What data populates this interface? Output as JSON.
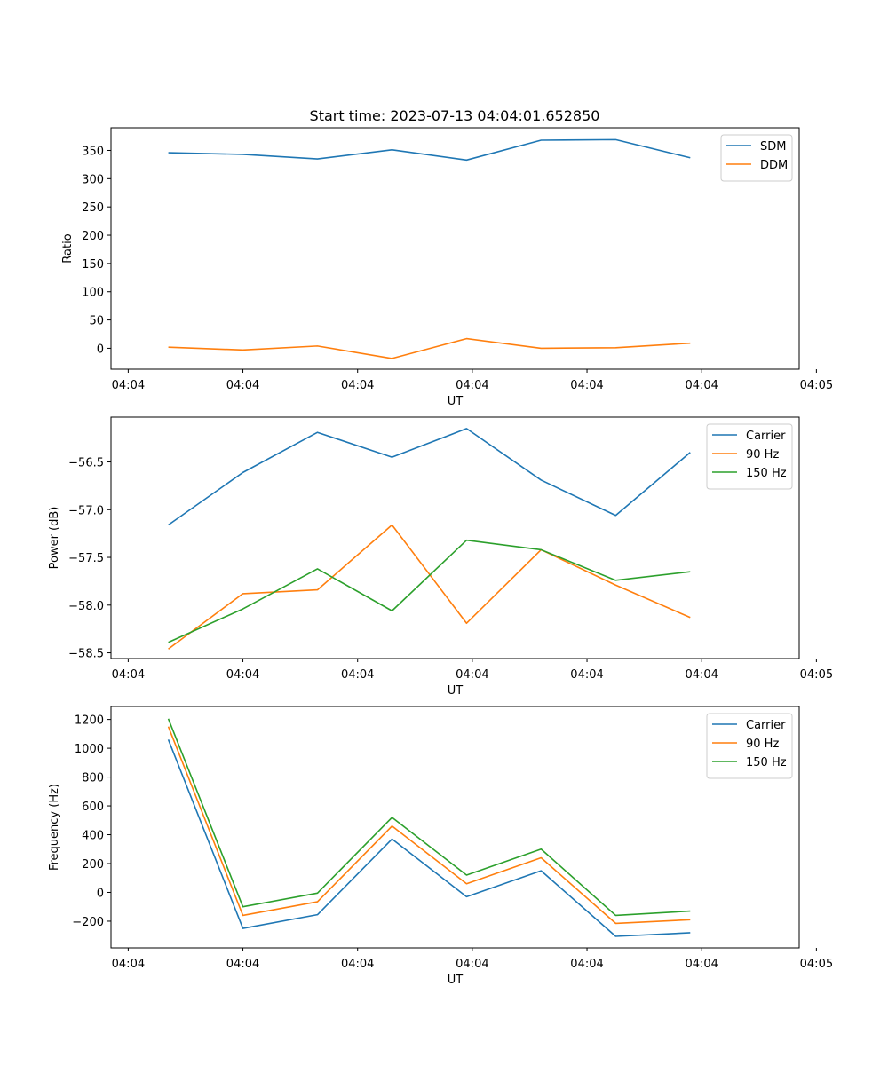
{
  "title": "Start time: 2023-07-13 04:04:01.652850",
  "colors": {
    "blue": "#1f77b4",
    "orange": "#ff7f0e",
    "green": "#2ca02c"
  },
  "chart_data": [
    {
      "type": "line",
      "name": "ratio",
      "xlabel": "UT",
      "ylabel": "Ratio",
      "x": [
        0.5,
        1.15,
        1.8,
        2.45,
        3.1,
        3.75,
        4.4,
        5.05
      ],
      "xlim": [
        0,
        6
      ],
      "xticks": [
        0.15,
        1.15,
        2.15,
        3.15,
        4.15,
        5.15,
        6.15
      ],
      "xticklabels": [
        "04:04",
        "04:04",
        "04:04",
        "04:04",
        "04:04",
        "04:04",
        "04:05"
      ],
      "ylim": [
        -37,
        390
      ],
      "yticks": [
        0,
        50,
        100,
        150,
        200,
        250,
        300,
        350
      ],
      "yticklabels": [
        "0",
        "50",
        "100",
        "150",
        "200",
        "250",
        "300",
        "350"
      ],
      "legend": "upper right",
      "series": [
        {
          "name": "SDM",
          "color": "#1f77b4",
          "values": [
            346,
            343,
            335,
            351,
            333,
            368,
            369,
            337
          ]
        },
        {
          "name": "DDM",
          "color": "#ff7f0e",
          "values": [
            2,
            -3,
            4,
            -18,
            17,
            0,
            1,
            9
          ]
        }
      ]
    },
    {
      "type": "line",
      "name": "power",
      "xlabel": "UT",
      "ylabel": "Power (dB)",
      "x": [
        0.5,
        1.15,
        1.8,
        2.45,
        3.1,
        3.75,
        4.4,
        5.05
      ],
      "xlim": [
        0,
        6
      ],
      "xticks": [
        0.15,
        1.15,
        2.15,
        3.15,
        4.15,
        5.15,
        6.15
      ],
      "xticklabels": [
        "04:04",
        "04:04",
        "04:04",
        "04:04",
        "04:04",
        "04:04",
        "04:05"
      ],
      "ylim": [
        -58.56,
        -56.03
      ],
      "yticks": [
        -58.5,
        -58.0,
        -57.5,
        -57.0,
        -56.5
      ],
      "yticklabels": [
        "−58.5",
        "−58.0",
        "−57.5",
        "−57.0",
        "−56.5"
      ],
      "legend": "upper right",
      "series": [
        {
          "name": "Carrier",
          "color": "#1f77b4",
          "values": [
            -57.16,
            -56.61,
            -56.19,
            -56.45,
            -56.15,
            -56.69,
            -57.06,
            -56.4
          ]
        },
        {
          "name": "90 Hz",
          "color": "#ff7f0e",
          "values": [
            -58.46,
            -57.88,
            -57.84,
            -57.16,
            -58.19,
            -57.42,
            -57.79,
            -58.13
          ]
        },
        {
          "name": "150 Hz",
          "color": "#2ca02c",
          "values": [
            -58.39,
            -58.04,
            -57.62,
            -58.06,
            -57.32,
            -57.42,
            -57.74,
            -57.65
          ]
        }
      ]
    },
    {
      "type": "line",
      "name": "frequency",
      "xlabel": "UT",
      "ylabel": "Frequency (Hz)",
      "x": [
        0.5,
        1.15,
        1.8,
        2.45,
        3.1,
        3.75,
        4.4,
        5.05
      ],
      "xlim": [
        0,
        6
      ],
      "xticks": [
        0.15,
        1.15,
        2.15,
        3.15,
        4.15,
        5.15,
        6.15
      ],
      "xticklabels": [
        "04:04",
        "04:04",
        "04:04",
        "04:04",
        "04:04",
        "04:04",
        "04:05"
      ],
      "ylim": [
        -385,
        1290
      ],
      "yticks": [
        -200,
        0,
        200,
        400,
        600,
        800,
        1000,
        1200
      ],
      "yticklabels": [
        "−200",
        "0",
        "200",
        "400",
        "600",
        "800",
        "1000",
        "1200"
      ],
      "legend": "upper right",
      "series": [
        {
          "name": "Carrier",
          "color": "#1f77b4",
          "values": [
            1060,
            -250,
            -155,
            370,
            -30,
            150,
            -305,
            -280
          ]
        },
        {
          "name": "90 Hz",
          "color": "#ff7f0e",
          "values": [
            1150,
            -160,
            -65,
            460,
            60,
            240,
            -215,
            -190
          ]
        },
        {
          "name": "150 Hz",
          "color": "#2ca02c",
          "values": [
            1205,
            -100,
            -5,
            520,
            120,
            300,
            -160,
            -130
          ]
        }
      ]
    }
  ]
}
